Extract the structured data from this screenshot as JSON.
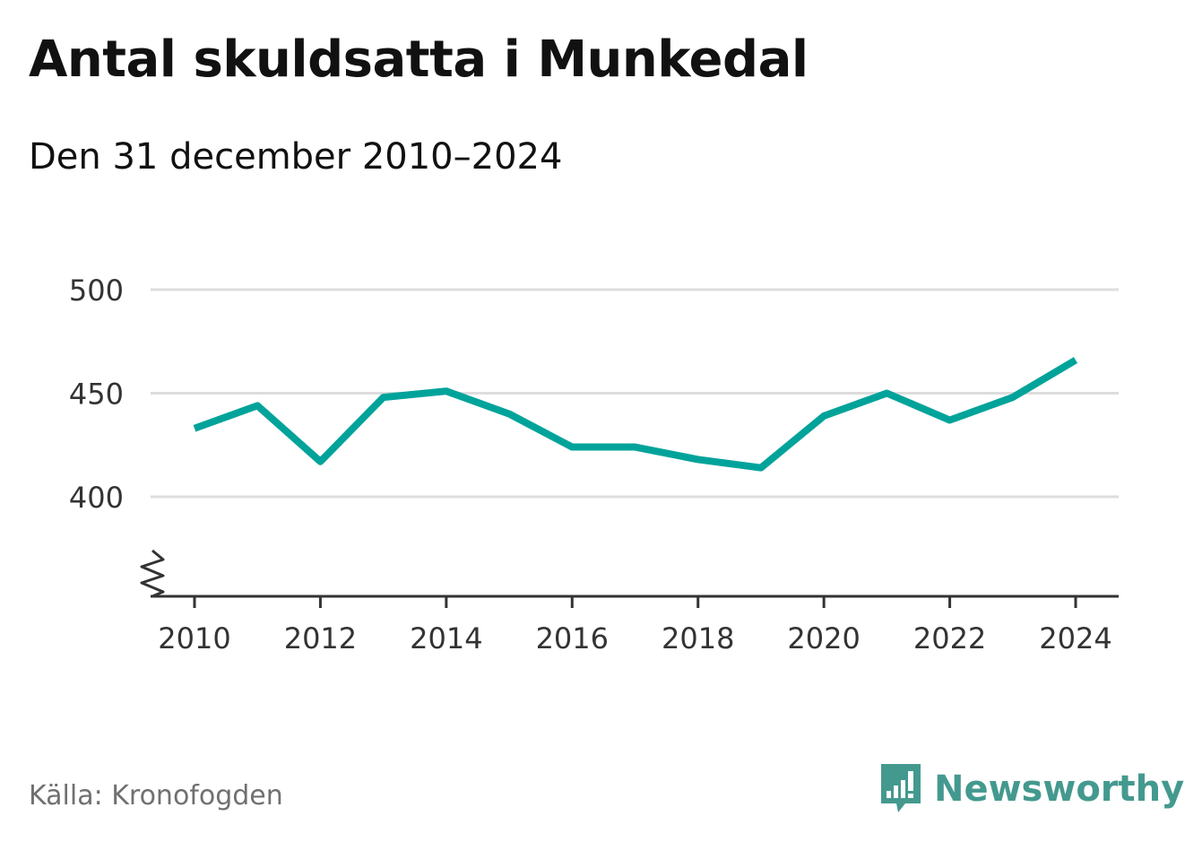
{
  "title": "Antal skuldsatta i Munkedal",
  "subtitle": "Den 31 december 2010–2024",
  "source": "Källa: Kronofogden",
  "brand": "Newsworthy",
  "colors": {
    "line": "#00a39a",
    "grid": "#dddddd",
    "axis": "#333333",
    "brand": "#44998f"
  },
  "chart_data": {
    "type": "line",
    "title": "Antal skuldsatta i Munkedal",
    "xlabel": "",
    "ylabel": "",
    "x": [
      2010,
      2011,
      2012,
      2013,
      2014,
      2015,
      2016,
      2017,
      2018,
      2019,
      2020,
      2021,
      2022,
      2023,
      2024
    ],
    "series": [
      {
        "name": "Antal skuldsatta",
        "values": [
          433,
          444,
          417,
          448,
          451,
          440,
          424,
          424,
          418,
          414,
          439,
          450,
          437,
          448,
          466
        ]
      }
    ],
    "y_ticks": [
      400,
      450,
      500
    ],
    "x_ticks": [
      2010,
      2012,
      2014,
      2016,
      2018,
      2020,
      2022,
      2024
    ],
    "ylim": [
      350,
      500
    ],
    "y_axis_break": true,
    "grid": true,
    "legend": "none"
  }
}
